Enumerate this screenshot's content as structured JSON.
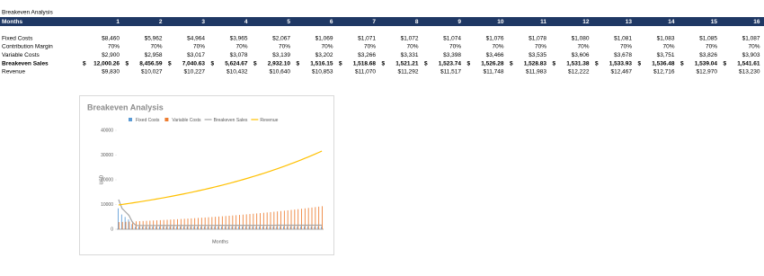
{
  "sheet": {
    "title": "Breakeven Analysis",
    "header": {
      "label": "Months",
      "cells": [
        1,
        2,
        3,
        4,
        5,
        6,
        7,
        8,
        9,
        10,
        11,
        12,
        13,
        14,
        15,
        16
      ]
    },
    "rows": [
      {
        "label": "Fixed Costs",
        "cells": [
          "$8,460",
          "$5,962",
          "$4,964",
          "$3,965",
          "$2,067",
          "$1,069",
          "$1,071",
          "$1,072",
          "$1,074",
          "$1,076",
          "$1,078",
          "$1,080",
          "$1,081",
          "$1,083",
          "$1,085",
          "$1,087"
        ]
      },
      {
        "label": "Contribution Margin",
        "cells": [
          "70%",
          "70%",
          "70%",
          "70%",
          "70%",
          "70%",
          "70%",
          "70%",
          "70%",
          "70%",
          "70%",
          "70%",
          "70%",
          "70%",
          "70%",
          "70%"
        ]
      },
      {
        "label": "Variable Costs",
        "cells": [
          "$2,900",
          "$2,958",
          "$3,017",
          "$3,078",
          "$3,139",
          "$3,202",
          "$3,266",
          "$3,331",
          "$3,398",
          "$3,466",
          "$3,535",
          "$3,606",
          "$3,678",
          "$3,751",
          "$3,826",
          "$3,903"
        ]
      },
      {
        "label": "Breakeven Sales",
        "currency": "$",
        "bold": true,
        "cells": [
          "12,000.26",
          "8,456.59",
          "7,040.63",
          "5,624.67",
          "2,932.10",
          "1,516.15",
          "1,518.68",
          "1,521.21",
          "1,523.74",
          "1,526.28",
          "1,528.83",
          "1,531.38",
          "1,533.93",
          "1,536.48",
          "1,539.04",
          "1,541.61"
        ]
      },
      {
        "label": "Revenue",
        "cells": [
          "$9,830",
          "$10,027",
          "$10,227",
          "$10,432",
          "$10,640",
          "$10,853",
          "$11,070",
          "$11,292",
          "$11,517",
          "$11,748",
          "$11,983",
          "$12,222",
          "$12,467",
          "$12,716",
          "$12,970",
          "$13,230"
        ]
      }
    ]
  },
  "chart_data": {
    "type": "bar-line",
    "title": "Breakeven Analysis",
    "x_label": "Months",
    "y_label": "USD",
    "x": [
      1,
      2,
      3,
      4,
      5,
      6,
      7,
      8,
      9,
      10,
      11,
      12,
      13,
      14,
      15,
      16,
      17,
      18,
      19,
      20,
      21,
      22,
      23,
      24,
      25,
      26,
      27,
      28,
      29,
      30,
      31,
      32,
      33,
      34,
      35,
      36,
      37,
      38,
      39,
      40,
      41,
      42,
      43,
      44,
      45,
      46,
      47,
      48,
      49,
      50,
      51,
      52,
      53,
      54,
      55,
      56,
      57,
      58,
      59,
      60
    ],
    "xlim": [
      0.5,
      60.5
    ],
    "ylim": [
      0,
      40000
    ],
    "yticks": [
      0,
      10000,
      20000,
      30000,
      40000
    ],
    "series": [
      {
        "name": "Fixed Costs",
        "kind": "bar",
        "color": "#5b9bd5",
        "values": [
          8460,
          5962,
          4964,
          3965,
          2067,
          1069,
          1071,
          1072,
          1074,
          1076,
          1078,
          1080,
          1081,
          1083,
          1085,
          1087,
          1089,
          1091,
          1093,
          1095,
          1097,
          1099,
          1101,
          1103,
          1105,
          1107,
          1109,
          1111,
          1113,
          1115,
          1117,
          1119,
          1121,
          1123,
          1125,
          1127,
          1129,
          1131,
          1133,
          1135,
          1137,
          1139,
          1141,
          1143,
          1145,
          1147,
          1149,
          1151,
          1153,
          1155,
          1157,
          1159,
          1161,
          1163,
          1165,
          1167,
          1169,
          1171,
          1173,
          1175
        ]
      },
      {
        "name": "Variable Costs",
        "kind": "bar",
        "color": "#ed7d31",
        "values": [
          2900,
          2958,
          3017,
          3078,
          3139,
          3202,
          3266,
          3331,
          3398,
          3466,
          3535,
          3606,
          3678,
          3751,
          3826,
          3903,
          3981,
          4061,
          4142,
          4225,
          4309,
          4395,
          4483,
          4573,
          4664,
          4758,
          4853,
          4950,
          5049,
          5150,
          5253,
          5358,
          5465,
          5575,
          5686,
          5800,
          5916,
          6034,
          6155,
          6278,
          6404,
          6532,
          6662,
          6796,
          6931,
          7070,
          7212,
          7356,
          7503,
          7653,
          7806,
          7962,
          8122,
          8284,
          8450,
          8619,
          8791,
          8967,
          9146,
          9329
        ]
      },
      {
        "name": "Breakeven Sales",
        "kind": "line",
        "color": "#a5a5a5",
        "values": [
          12000.26,
          8456.59,
          7040.63,
          5624.67,
          2932.1,
          1516.15,
          1518.68,
          1521.21,
          1523.74,
          1526.28,
          1528.83,
          1531.38,
          1533.93,
          1536.48,
          1539.04,
          1541.61,
          1544,
          1547,
          1549,
          1552,
          1554,
          1557,
          1560,
          1562,
          1565,
          1568,
          1570,
          1573,
          1576,
          1578,
          1581,
          1584,
          1586,
          1589,
          1592,
          1594,
          1597,
          1600,
          1602,
          1605,
          1608,
          1610,
          1613,
          1616,
          1618,
          1621,
          1624,
          1626,
          1629,
          1632,
          1634,
          1637,
          1640,
          1642,
          1645,
          1648,
          1650,
          1653,
          1656,
          1658
        ]
      },
      {
        "name": "Revenue",
        "kind": "line",
        "color": "#ffc000",
        "values": [
          9830,
          10027,
          10227,
          10432,
          10640,
          10853,
          11070,
          11292,
          11517,
          11748,
          11983,
          12222,
          12467,
          12716,
          12970,
          13230,
          13494,
          13764,
          14040,
          14320,
          14607,
          14899,
          15197,
          15501,
          15811,
          16127,
          16450,
          16779,
          17114,
          17457,
          17806,
          18162,
          18525,
          18896,
          19273,
          19659,
          20052,
          20453,
          20862,
          21280,
          21705,
          22139,
          22582,
          23034,
          23494,
          23964,
          24444,
          24932,
          25431,
          25940,
          26458,
          26988,
          27527,
          28078,
          28639,
          29212,
          29796,
          30392,
          31000,
          31620
        ]
      }
    ]
  }
}
